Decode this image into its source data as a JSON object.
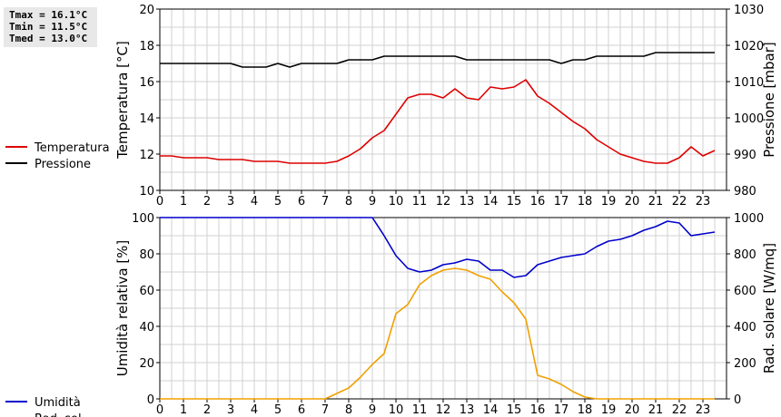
{
  "stats": {
    "tmax": "Tmax = 16.1°C",
    "tmin": "Tmin = 11.5°C",
    "tmed": "Tmed = 13.0°C"
  },
  "chart_data": [
    {
      "type": "line",
      "x_ticks": [
        "0",
        "1",
        "2",
        "3",
        "4",
        "5",
        "6",
        "7",
        "8",
        "9",
        "10",
        "11",
        "12",
        "13",
        "14",
        "15",
        "16",
        "17",
        "18",
        "19",
        "20",
        "21",
        "22",
        "23"
      ],
      "xlim": [
        0,
        24
      ],
      "grid": true,
      "ylabel_left": "Temperatura [°C]",
      "ylabel_right": "Pressione [mbar]",
      "ylim_left": [
        10,
        20
      ],
      "yticks_left": [
        "10",
        "12",
        "14",
        "16",
        "18",
        "20"
      ],
      "ylim_right": [
        980,
        1030
      ],
      "yticks_right": [
        "980",
        "990",
        "1000",
        "1010",
        "1020",
        "1030"
      ],
      "legend_position": "left",
      "series": [
        {
          "name": "Temperatura",
          "axis": "left",
          "color": "#dd0000",
          "x": [
            0,
            0.5,
            1,
            1.5,
            2,
            2.5,
            3,
            3.5,
            4,
            4.5,
            5,
            5.5,
            6,
            6.5,
            7,
            7.5,
            8,
            8.5,
            9,
            9.5,
            10,
            10.5,
            11,
            11.5,
            12,
            12.5,
            13,
            13.5,
            14,
            14.5,
            15,
            15.5,
            16,
            16.5,
            17,
            17.5,
            18,
            18.5,
            19,
            19.5,
            20,
            20.5,
            21,
            21.5,
            22,
            22.5,
            23,
            23.5
          ],
          "values": [
            11.9,
            11.9,
            11.8,
            11.8,
            11.8,
            11.7,
            11.7,
            11.7,
            11.6,
            11.6,
            11.6,
            11.5,
            11.5,
            11.5,
            11.5,
            11.6,
            11.9,
            12.3,
            12.9,
            13.3,
            14.2,
            15.1,
            15.3,
            15.3,
            15.1,
            15.6,
            15.1,
            15.0,
            15.7,
            15.6,
            15.7,
            16.1,
            15.2,
            14.8,
            14.3,
            13.8,
            13.4,
            12.8,
            12.4,
            12.0,
            11.8,
            11.6,
            11.5,
            11.5,
            11.8,
            12.4,
            11.9,
            12.2
          ]
        },
        {
          "name": "Pressione",
          "axis": "right",
          "color": "#000000",
          "x": [
            0,
            0.5,
            1,
            1.5,
            2,
            2.5,
            3,
            3.5,
            4,
            4.5,
            5,
            5.5,
            6,
            6.5,
            7,
            7.5,
            8,
            8.5,
            9,
            9.5,
            10,
            10.5,
            11,
            11.5,
            12,
            12.5,
            13,
            13.5,
            14,
            14.5,
            15,
            15.5,
            16,
            16.5,
            17,
            17.5,
            18,
            18.5,
            19,
            19.5,
            20,
            20.5,
            21,
            21.5,
            22,
            22.5,
            23,
            23.5
          ],
          "values": [
            1015,
            1015,
            1015,
            1015,
            1015,
            1015,
            1015,
            1014,
            1014,
            1014,
            1015,
            1014,
            1015,
            1015,
            1015,
            1015,
            1016,
            1016,
            1016,
            1017,
            1017,
            1017,
            1017,
            1017,
            1017,
            1017,
            1016,
            1016,
            1016,
            1016,
            1016,
            1016,
            1016,
            1016,
            1015,
            1016,
            1016,
            1017,
            1017,
            1017,
            1017,
            1017,
            1018,
            1018,
            1018,
            1018,
            1018,
            1018
          ]
        }
      ]
    },
    {
      "type": "line",
      "x_ticks": [
        "0",
        "1",
        "2",
        "3",
        "4",
        "5",
        "6",
        "7",
        "8",
        "9",
        "10",
        "11",
        "12",
        "13",
        "14",
        "15",
        "16",
        "17",
        "18",
        "19",
        "20",
        "21",
        "22",
        "23"
      ],
      "xlim": [
        0,
        24
      ],
      "grid": true,
      "ylabel_left": "Umidità relativa [%]",
      "ylabel_right": "Rad. solare [W/mq]",
      "ylim_left": [
        0,
        100
      ],
      "yticks_left": [
        "0",
        "20",
        "40",
        "60",
        "80",
        "100"
      ],
      "ylim_right": [
        0,
        1000
      ],
      "yticks_right": [
        "0",
        "200",
        "400",
        "600",
        "800",
        "1000"
      ],
      "legend_position": "left",
      "series": [
        {
          "name": "Umidità",
          "axis": "left",
          "color": "#0000cc",
          "x": [
            0,
            1,
            2,
            3,
            4,
            5,
            6,
            7,
            8,
            9,
            9.5,
            10,
            10.5,
            11,
            11.5,
            12,
            12.5,
            13,
            13.5,
            14,
            14.5,
            15,
            15.5,
            16,
            16.5,
            17,
            17.5,
            18,
            18.5,
            19,
            19.5,
            20,
            20.5,
            21,
            21.5,
            22,
            22.5,
            23,
            23.5
          ],
          "values": [
            100,
            100,
            100,
            100,
            100,
            100,
            100,
            100,
            100,
            100,
            90,
            79,
            72,
            70,
            71,
            74,
            75,
            77,
            76,
            71,
            71,
            67,
            68,
            74,
            76,
            78,
            79,
            80,
            84,
            87,
            88,
            90,
            93,
            95,
            98,
            97,
            90,
            91,
            92
          ]
        },
        {
          "name": "Rad. sol.",
          "axis": "right",
          "color": "#f0a000",
          "x": [
            0,
            1,
            2,
            3,
            4,
            5,
            6,
            7,
            7.5,
            8,
            8.5,
            9,
            9.5,
            10,
            10.5,
            11,
            11.5,
            12,
            12.5,
            13,
            13.5,
            14,
            14.5,
            15,
            15.5,
            16,
            16.5,
            17,
            17.5,
            18,
            18.5,
            19,
            20,
            21,
            22,
            23,
            23.5
          ],
          "values": [
            0,
            0,
            0,
            0,
            0,
            0,
            0,
            0,
            30,
            60,
            120,
            190,
            250,
            470,
            520,
            630,
            680,
            710,
            720,
            710,
            680,
            660,
            590,
            530,
            440,
            130,
            110,
            80,
            40,
            10,
            0,
            0,
            0,
            0,
            0,
            0,
            0
          ]
        }
      ]
    }
  ]
}
